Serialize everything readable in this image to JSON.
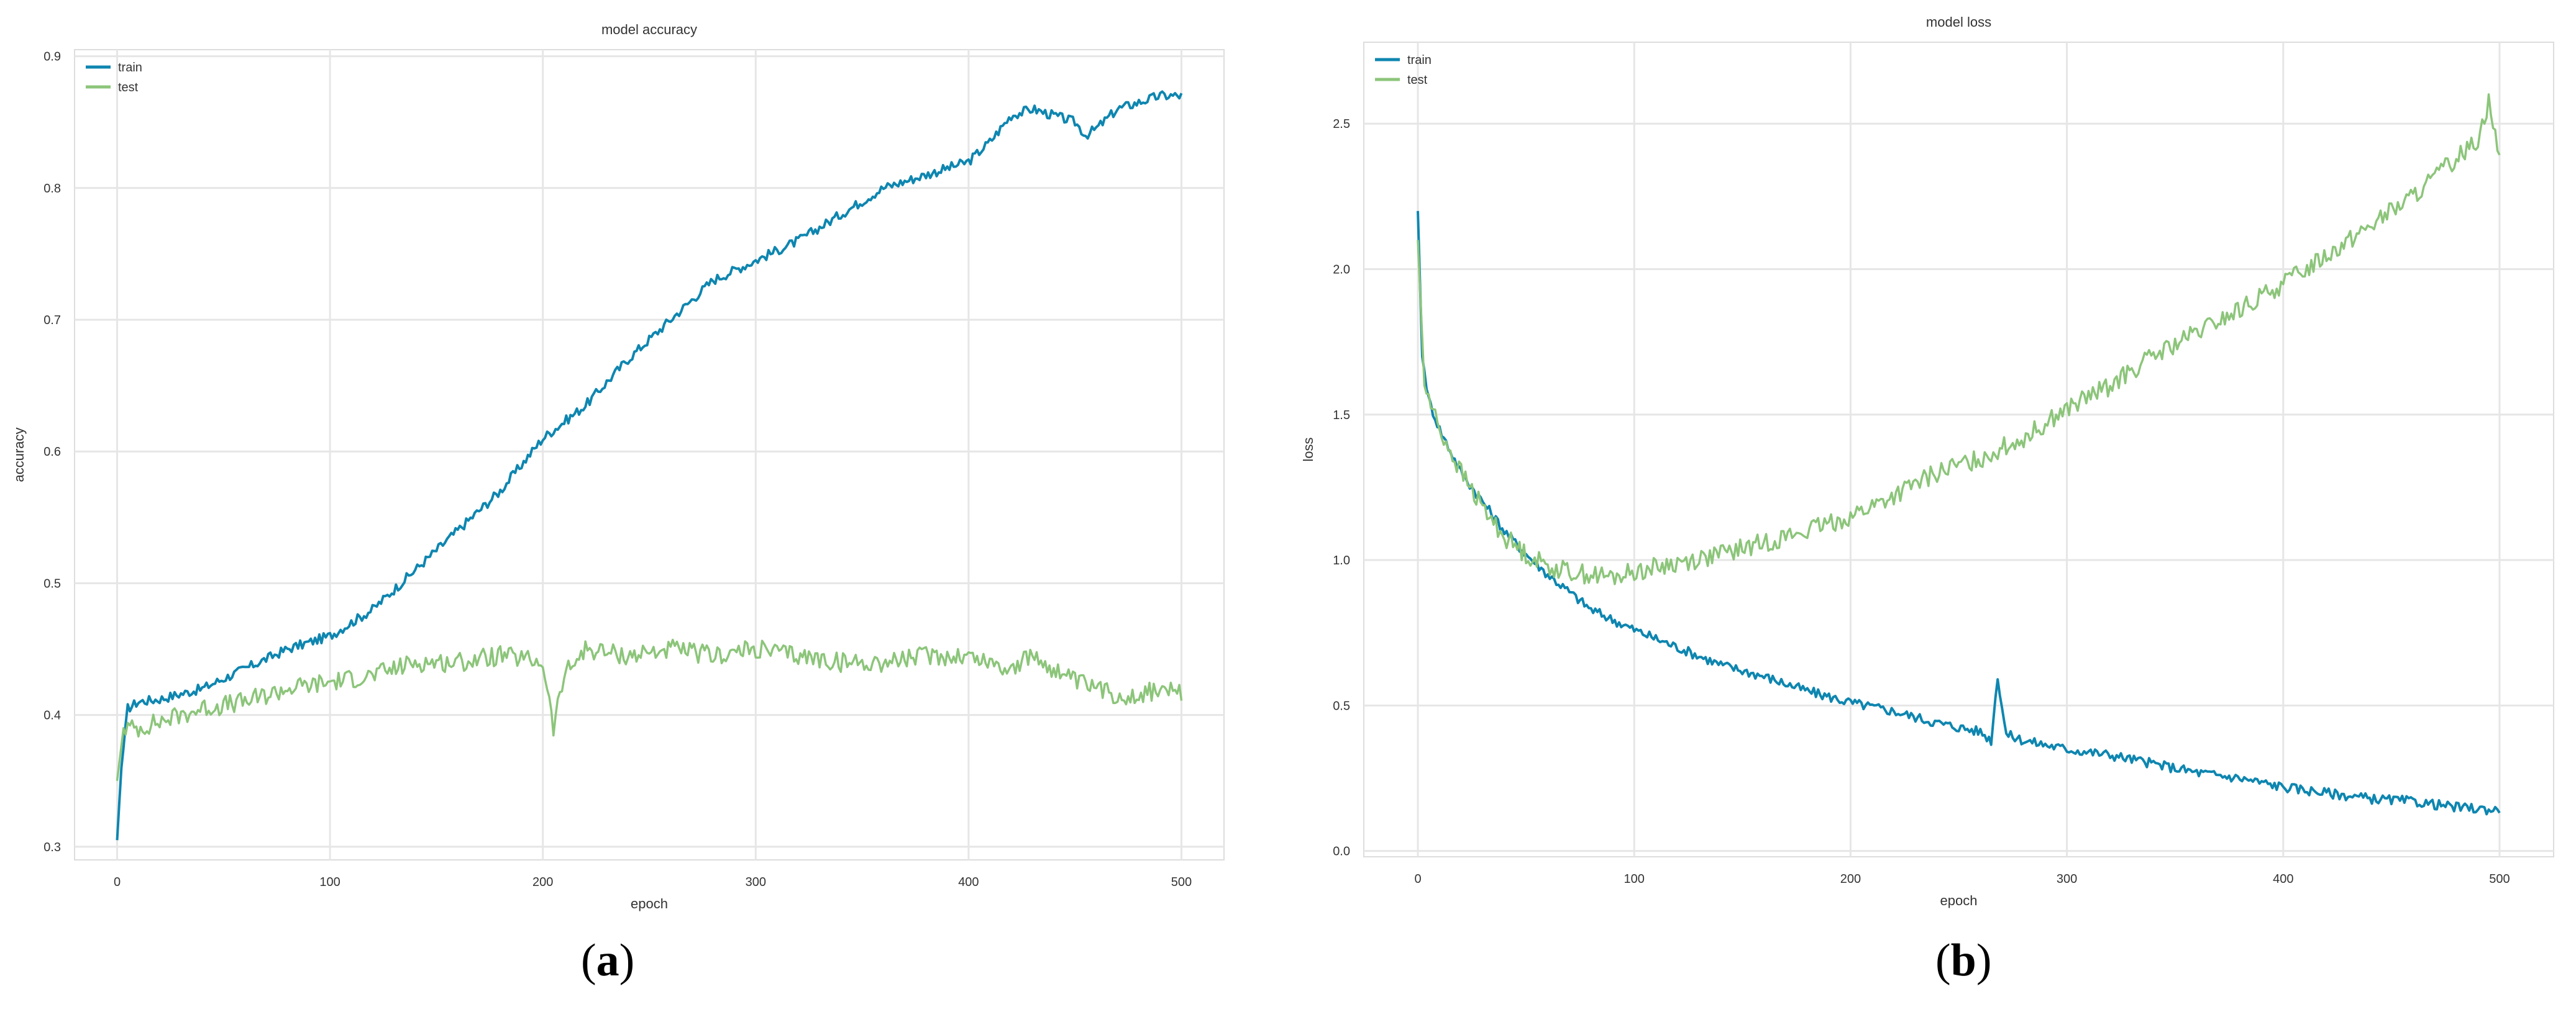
{
  "colors": {
    "train": "#0e86b0",
    "test": "#8cc57a",
    "grid": "#e6e6e6",
    "text": "#333333",
    "frame": "#dddddd"
  },
  "panels": [
    {
      "caption": "a",
      "chart_data": {
        "type": "line",
        "title": "model accuracy",
        "xlabel": "epoch",
        "ylabel": "accuracy",
        "xlim": [
          -20,
          520
        ],
        "ylim": [
          0.29,
          0.905
        ],
        "xticks": [
          0,
          100,
          200,
          300,
          400,
          500
        ],
        "yticks": [
          0.3,
          0.4,
          0.5,
          0.6,
          0.7,
          0.8,
          0.9
        ],
        "grid": true,
        "legend": "top-left",
        "series": [
          {
            "name": "train",
            "color": "#0e86b0",
            "points": [
              [
                0,
                0.305
              ],
              [
                2,
                0.36
              ],
              [
                5,
                0.405
              ],
              [
                10,
                0.41
              ],
              [
                20,
                0.412
              ],
              [
                40,
                0.42
              ],
              [
                60,
                0.435
              ],
              [
                80,
                0.45
              ],
              [
                100,
                0.46
              ],
              [
                120,
                0.48
              ],
              [
                140,
                0.51
              ],
              [
                160,
                0.54
              ],
              [
                180,
                0.57
              ],
              [
                200,
                0.61
              ],
              [
                220,
                0.635
              ],
              [
                240,
                0.67
              ],
              [
                260,
                0.7
              ],
              [
                280,
                0.73
              ],
              [
                300,
                0.745
              ],
              [
                320,
                0.76
              ],
              [
                340,
                0.78
              ],
              [
                360,
                0.8
              ],
              [
                380,
                0.81
              ],
              [
                400,
                0.82
              ],
              [
                410,
                0.835
              ],
              [
                420,
                0.855
              ],
              [
                430,
                0.86
              ],
              [
                440,
                0.855
              ],
              [
                450,
                0.85
              ],
              [
                455,
                0.84
              ],
              [
                460,
                0.845
              ],
              [
                470,
                0.86
              ],
              [
                480,
                0.865
              ],
              [
                490,
                0.87
              ],
              [
                500,
                0.87
              ]
            ]
          },
          {
            "name": "test",
            "color": "#8cc57a",
            "points": [
              [
                0,
                0.35
              ],
              [
                3,
                0.39
              ],
              [
                10,
                0.39
              ],
              [
                20,
                0.395
              ],
              [
                40,
                0.405
              ],
              [
                60,
                0.41
              ],
              [
                80,
                0.42
              ],
              [
                100,
                0.425
              ],
              [
                120,
                0.43
              ],
              [
                140,
                0.44
              ],
              [
                160,
                0.44
              ],
              [
                180,
                0.445
              ],
              [
                200,
                0.44
              ],
              [
                205,
                0.39
              ],
              [
                210,
                0.43
              ],
              [
                220,
                0.45
              ],
              [
                240,
                0.445
              ],
              [
                260,
                0.45
              ],
              [
                280,
                0.445
              ],
              [
                300,
                0.45
              ],
              [
                320,
                0.445
              ],
              [
                340,
                0.44
              ],
              [
                360,
                0.44
              ],
              [
                380,
                0.445
              ],
              [
                400,
                0.445
              ],
              [
                410,
                0.44
              ],
              [
                420,
                0.435
              ],
              [
                430,
                0.445
              ],
              [
                440,
                0.435
              ],
              [
                450,
                0.425
              ],
              [
                460,
                0.42
              ],
              [
                470,
                0.415
              ],
              [
                480,
                0.415
              ],
              [
                490,
                0.42
              ],
              [
                500,
                0.415
              ]
            ]
          }
        ]
      }
    },
    {
      "caption": "b",
      "chart_data": {
        "type": "line",
        "title": "model loss",
        "xlabel": "epoch",
        "ylabel": "loss",
        "xlim": [
          -25,
          525
        ],
        "ylim": [
          -0.02,
          2.78
        ],
        "xticks": [
          0,
          100,
          200,
          300,
          400,
          500
        ],
        "yticks": [
          0.0,
          0.5,
          1.0,
          1.5,
          2.0,
          2.5
        ],
        "ytick_labels": [
          "0.0",
          "0.5",
          "1.0",
          "1.5",
          "2.0",
          "2.5"
        ],
        "grid": true,
        "legend": "top-left",
        "series": [
          {
            "name": "train",
            "color": "#0e86b0",
            "points": [
              [
                0,
                2.2
              ],
              [
                2,
                1.7
              ],
              [
                5,
                1.55
              ],
              [
                10,
                1.45
              ],
              [
                20,
                1.3
              ],
              [
                30,
                1.2
              ],
              [
                40,
                1.1
              ],
              [
                50,
                1.02
              ],
              [
                60,
                0.95
              ],
              [
                80,
                0.83
              ],
              [
                100,
                0.76
              ],
              [
                120,
                0.7
              ],
              [
                140,
                0.64
              ],
              [
                160,
                0.6
              ],
              [
                180,
                0.55
              ],
              [
                200,
                0.51
              ],
              [
                220,
                0.48
              ],
              [
                240,
                0.44
              ],
              [
                260,
                0.41
              ],
              [
                265,
                0.38
              ],
              [
                268,
                0.6
              ],
              [
                272,
                0.4
              ],
              [
                280,
                0.38
              ],
              [
                300,
                0.35
              ],
              [
                320,
                0.33
              ],
              [
                340,
                0.3
              ],
              [
                360,
                0.27
              ],
              [
                380,
                0.25
              ],
              [
                400,
                0.22
              ],
              [
                420,
                0.2
              ],
              [
                440,
                0.18
              ],
              [
                460,
                0.17
              ],
              [
                480,
                0.15
              ],
              [
                500,
                0.14
              ]
            ]
          },
          {
            "name": "test",
            "color": "#8cc57a",
            "points": [
              [
                0,
                2.1
              ],
              [
                3,
                1.6
              ],
              [
                10,
                1.45
              ],
              [
                20,
                1.3
              ],
              [
                30,
                1.18
              ],
              [
                40,
                1.08
              ],
              [
                50,
                1.02
              ],
              [
                60,
                0.98
              ],
              [
                70,
                0.96
              ],
              [
                80,
                0.95
              ],
              [
                90,
                0.94
              ],
              [
                100,
                0.96
              ],
              [
                120,
                0.99
              ],
              [
                140,
                1.02
              ],
              [
                160,
                1.06
              ],
              [
                180,
                1.1
              ],
              [
                200,
                1.15
              ],
              [
                220,
                1.22
              ],
              [
                240,
                1.3
              ],
              [
                260,
                1.35
              ],
              [
                280,
                1.42
              ],
              [
                300,
                1.52
              ],
              [
                320,
                1.6
              ],
              [
                340,
                1.7
              ],
              [
                360,
                1.78
              ],
              [
                380,
                1.86
              ],
              [
                400,
                1.95
              ],
              [
                420,
                2.05
              ],
              [
                440,
                2.15
              ],
              [
                460,
                2.25
              ],
              [
                480,
                2.38
              ],
              [
                490,
                2.45
              ],
              [
                495,
                2.58
              ],
              [
                500,
                2.38
              ]
            ]
          }
        ]
      }
    }
  ]
}
